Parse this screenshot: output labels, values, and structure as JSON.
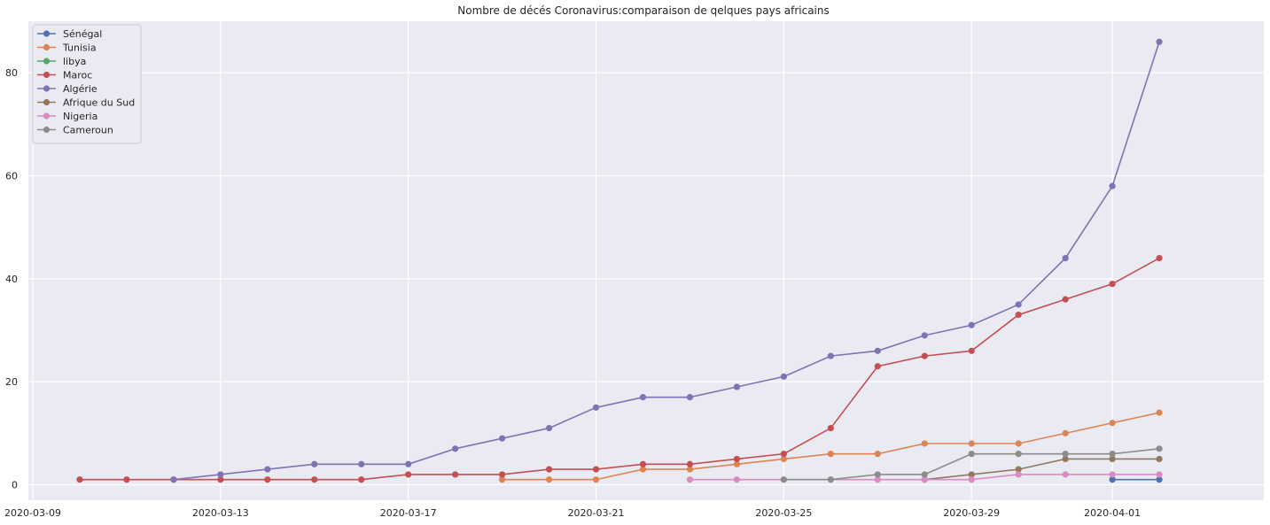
{
  "chart_data": {
    "type": "line",
    "title": "Nombre de décés Coronavirus:comparaison de qelques pays africains",
    "xlabel": "",
    "ylabel": "",
    "x_range": [
      "2020-03-09",
      "2020-04-04"
    ],
    "ylim": [
      -3,
      90
    ],
    "x_ticks": [
      "2020-03-09",
      "2020-03-13",
      "2020-03-17",
      "2020-03-21",
      "2020-03-25",
      "2020-03-29",
      "2020-04-01"
    ],
    "y_ticks": [
      0,
      20,
      40,
      60,
      80
    ],
    "grid": true,
    "legend_position": "top-left",
    "background": "#eaeaf2",
    "series": [
      {
        "name": "Sénégal",
        "color": "#4c72b0",
        "points": [
          [
            "2020-04-01",
            1
          ],
          [
            "2020-04-02",
            1
          ]
        ]
      },
      {
        "name": "Tunisia",
        "color": "#dd8452",
        "points": [
          [
            "2020-03-19",
            1
          ],
          [
            "2020-03-20",
            1
          ],
          [
            "2020-03-21",
            1
          ],
          [
            "2020-03-22",
            3
          ],
          [
            "2020-03-23",
            3
          ],
          [
            "2020-03-24",
            4
          ],
          [
            "2020-03-25",
            5
          ],
          [
            "2020-03-26",
            6
          ],
          [
            "2020-03-27",
            6
          ],
          [
            "2020-03-28",
            8
          ],
          [
            "2020-03-29",
            8
          ],
          [
            "2020-03-30",
            8
          ],
          [
            "2020-03-31",
            10
          ],
          [
            "2020-04-01",
            12
          ],
          [
            "2020-04-02",
            14
          ]
        ]
      },
      {
        "name": "libya",
        "color": "#55a868",
        "points": []
      },
      {
        "name": "Maroc",
        "color": "#c44e52",
        "points": [
          [
            "2020-03-10",
            1
          ],
          [
            "2020-03-11",
            1
          ],
          [
            "2020-03-12",
            1
          ],
          [
            "2020-03-13",
            1
          ],
          [
            "2020-03-14",
            1
          ],
          [
            "2020-03-15",
            1
          ],
          [
            "2020-03-16",
            1
          ],
          [
            "2020-03-17",
            2
          ],
          [
            "2020-03-18",
            2
          ],
          [
            "2020-03-19",
            2
          ],
          [
            "2020-03-20",
            3
          ],
          [
            "2020-03-21",
            3
          ],
          [
            "2020-03-22",
            4
          ],
          [
            "2020-03-23",
            4
          ],
          [
            "2020-03-24",
            5
          ],
          [
            "2020-03-25",
            6
          ],
          [
            "2020-03-26",
            11
          ],
          [
            "2020-03-27",
            23
          ],
          [
            "2020-03-28",
            25
          ],
          [
            "2020-03-29",
            26
          ],
          [
            "2020-03-30",
            33
          ],
          [
            "2020-03-31",
            36
          ],
          [
            "2020-04-01",
            39
          ],
          [
            "2020-04-02",
            44
          ]
        ]
      },
      {
        "name": "Algérie",
        "color": "#8172b3",
        "points": [
          [
            "2020-03-12",
            1
          ],
          [
            "2020-03-13",
            2
          ],
          [
            "2020-03-14",
            3
          ],
          [
            "2020-03-15",
            4
          ],
          [
            "2020-03-16",
            4
          ],
          [
            "2020-03-17",
            4
          ],
          [
            "2020-03-18",
            7
          ],
          [
            "2020-03-19",
            9
          ],
          [
            "2020-03-20",
            11
          ],
          [
            "2020-03-21",
            15
          ],
          [
            "2020-03-22",
            17
          ],
          [
            "2020-03-23",
            17
          ],
          [
            "2020-03-24",
            19
          ],
          [
            "2020-03-25",
            21
          ],
          [
            "2020-03-26",
            25
          ],
          [
            "2020-03-27",
            26
          ],
          [
            "2020-03-28",
            29
          ],
          [
            "2020-03-29",
            31
          ],
          [
            "2020-03-30",
            35
          ],
          [
            "2020-03-31",
            44
          ],
          [
            "2020-04-01",
            58
          ],
          [
            "2020-04-02",
            86
          ]
        ]
      },
      {
        "name": "Afrique du Sud",
        "color": "#937860",
        "points": [
          [
            "2020-03-28",
            1
          ],
          [
            "2020-03-29",
            2
          ],
          [
            "2020-03-30",
            3
          ],
          [
            "2020-03-31",
            5
          ],
          [
            "2020-04-01",
            5
          ],
          [
            "2020-04-02",
            5
          ]
        ]
      },
      {
        "name": "Nigeria",
        "color": "#da8bc3",
        "points": [
          [
            "2020-03-23",
            1
          ],
          [
            "2020-03-24",
            1
          ],
          [
            "2020-03-25",
            1
          ],
          [
            "2020-03-26",
            1
          ],
          [
            "2020-03-27",
            1
          ],
          [
            "2020-03-28",
            1
          ],
          [
            "2020-03-29",
            1
          ],
          [
            "2020-03-30",
            2
          ],
          [
            "2020-03-31",
            2
          ],
          [
            "2020-04-01",
            2
          ],
          [
            "2020-04-02",
            2
          ]
        ]
      },
      {
        "name": "Cameroun",
        "color": "#8c8c8c",
        "points": [
          [
            "2020-03-25",
            1
          ],
          [
            "2020-03-26",
            1
          ],
          [
            "2020-03-27",
            2
          ],
          [
            "2020-03-28",
            2
          ],
          [
            "2020-03-29",
            6
          ],
          [
            "2020-03-30",
            6
          ],
          [
            "2020-03-31",
            6
          ],
          [
            "2020-04-01",
            6
          ],
          [
            "2020-04-02",
            7
          ]
        ]
      }
    ]
  }
}
